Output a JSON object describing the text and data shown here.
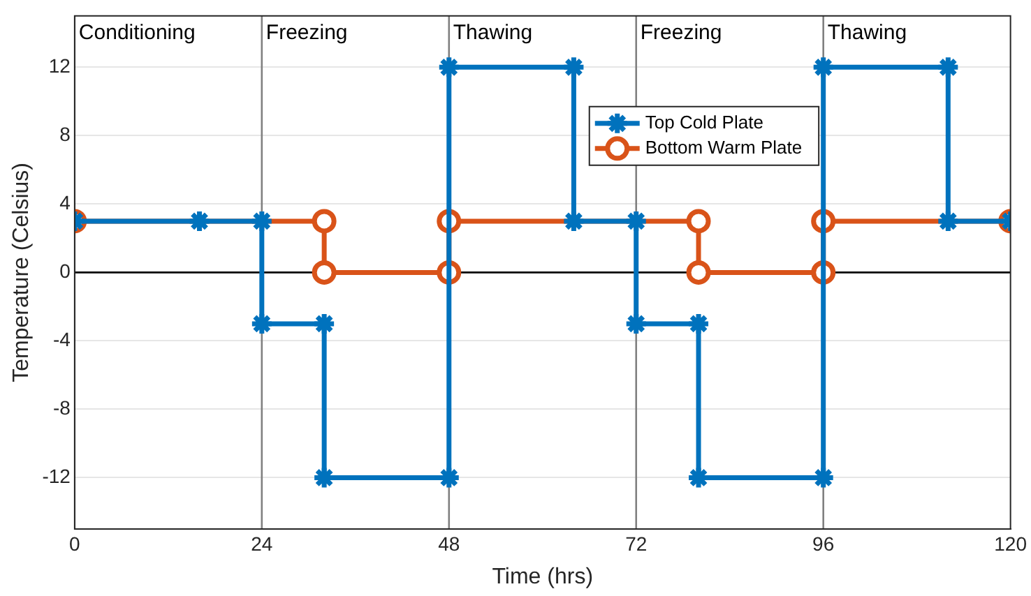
{
  "chart_data": {
    "type": "line",
    "xlabel": "Time (hrs)",
    "ylabel": "Temperature (Celsius)",
    "xlim": [
      0,
      120
    ],
    "xticks": [
      0,
      24,
      48,
      72,
      96,
      120
    ],
    "ylim": [
      -15,
      15
    ],
    "yticks": [
      -12,
      -8,
      -4,
      0,
      4,
      8,
      12
    ],
    "grid": "y",
    "legend": "top right",
    "line_style": "solid",
    "annotations": [
      "Conditioning"
    ],
    "series": [
      {
        "name": "Top Cold Plate",
        "color": "#0072bd",
        "marker": "cross",
        "x": [
          0,
          16,
          24,
          24,
          32,
          32,
          48,
          48,
          64,
          64,
          72,
          72,
          80,
          80,
          96,
          96,
          112,
          112,
          120
        ],
        "values": [
          3,
          3,
          3,
          -3,
          -3,
          -12,
          -12,
          12,
          12,
          3,
          3,
          -3,
          -3,
          -12,
          -12,
          12,
          12,
          3,
          3
        ]
      },
      {
        "name": "Bottom Warm Plate",
        "color": "#d95319",
        "marker": "circle",
        "x": [
          0,
          32,
          32,
          48,
          48,
          80,
          80,
          96,
          96,
          120
        ],
        "values": [
          3,
          3,
          0,
          0,
          3,
          3,
          0,
          0,
          3,
          3
        ]
      }
    ],
    "ref_lines": [
      {
        "axis": "x",
        "value": 24,
        "label": "Freezing",
        "color": "#808080"
      },
      {
        "axis": "x",
        "value": 48,
        "label": "Thawing",
        "color": "#808080"
      },
      {
        "axis": "x",
        "value": 72,
        "label": "Freezing",
        "color": "#808080"
      },
      {
        "axis": "x",
        "value": 96,
        "label": "Thawing",
        "color": "#808080"
      },
      {
        "axis": "y",
        "value": 0,
        "color": "#000000"
      }
    ]
  }
}
